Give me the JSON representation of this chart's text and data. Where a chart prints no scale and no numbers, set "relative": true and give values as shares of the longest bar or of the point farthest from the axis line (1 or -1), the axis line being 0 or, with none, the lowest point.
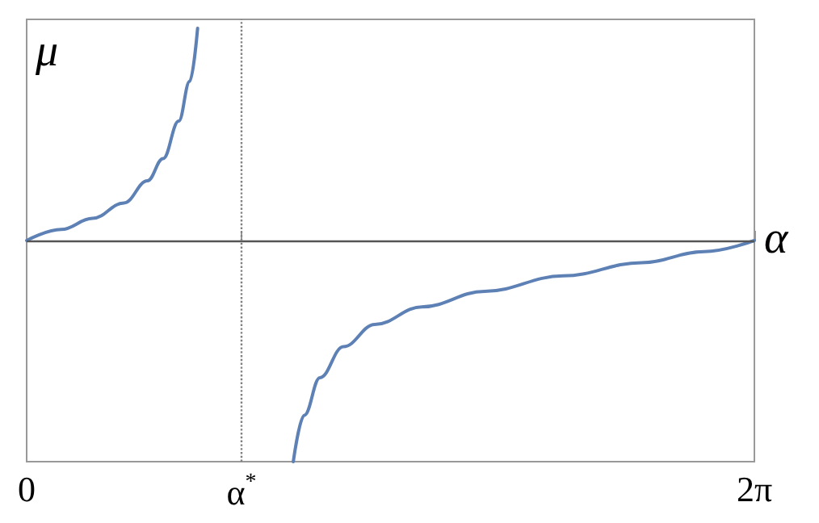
{
  "chart_data": {
    "type": "line",
    "relative": true,
    "xlabel": "α",
    "ylabel": "μ",
    "xlim": [
      0,
      6.283
    ],
    "xticks": [
      {
        "value": 0,
        "label": "0"
      },
      {
        "value": 1.855,
        "label": "α$^{*}$"
      },
      {
        "value": 6.283,
        "label": "2π"
      }
    ],
    "tick_labels": "x",
    "grid": false,
    "marker": "none",
    "line_style": "solid",
    "series": [
      {
        "color": "#5e81b5",
        "x": [
          0,
          0.298,
          0.569,
          0.84,
          1.043,
          1.178,
          1.313,
          1.408,
          1.476
        ],
        "values": [
          0,
          0.05,
          0.1,
          0.17,
          0.27,
          0.37,
          0.54,
          0.72,
          0.96
        ]
      },
      {
        "color": "#5e81b5",
        "x": [
          2.302,
          2.397,
          2.532,
          2.735,
          3.006,
          3.412,
          3.954,
          4.631,
          5.308,
          5.85,
          6.283
        ],
        "values": [
          -1,
          -0.79,
          -0.62,
          -0.48,
          -0.38,
          -0.3,
          -0.23,
          -0.16,
          -0.1,
          -0.05,
          0
        ]
      }
    ],
    "ref_lines": [
      {
        "axis": "x",
        "value": 1.855,
        "color": "#808080",
        "line_style": "dotted"
      }
    ]
  }
}
